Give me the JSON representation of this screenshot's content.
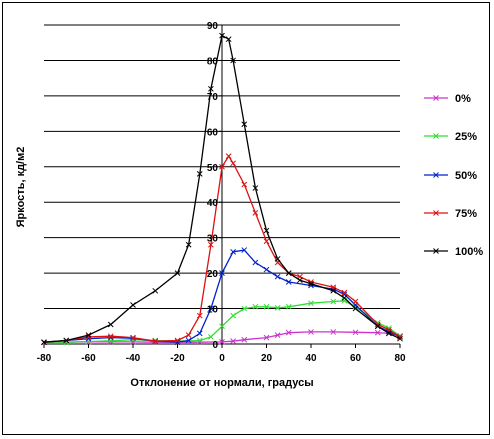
{
  "chart_data": {
    "type": "line",
    "xlabel": "Отклонение от нормали, градусы",
    "ylabel": "Яркость, кд/м2",
    "xlim": [
      -80,
      80
    ],
    "ylim": [
      0,
      90
    ],
    "x_ticks": [
      -80,
      -60,
      -40,
      -20,
      0,
      20,
      40,
      60,
      80
    ],
    "y_ticks": [
      10,
      20,
      30,
      40,
      50,
      60,
      70,
      80,
      90
    ],
    "y_ticks_on_axis": [
      0
    ],
    "grid": "horizontal",
    "legend_position": "right",
    "series": [
      {
        "name": "0%",
        "color": "#cc33cc",
        "points": [
          [
            -80,
            0.5
          ],
          [
            -70,
            0.5
          ],
          [
            -60,
            0.6
          ],
          [
            -50,
            0.6
          ],
          [
            -40,
            0.6
          ],
          [
            -30,
            0.5
          ],
          [
            -20,
            0.5
          ],
          [
            -10,
            0.5
          ],
          [
            0,
            0.6
          ],
          [
            5,
            0.8
          ],
          [
            10,
            1.2
          ],
          [
            20,
            1.8
          ],
          [
            25,
            2.5
          ],
          [
            30,
            3.2
          ],
          [
            40,
            3.4
          ],
          [
            50,
            3.4
          ],
          [
            60,
            3.3
          ],
          [
            70,
            3.2
          ],
          [
            75,
            3
          ],
          [
            80,
            2.3
          ]
        ]
      },
      {
        "name": "25%",
        "color": "#33dd33",
        "points": [
          [
            -80,
            0.5
          ],
          [
            -70,
            0.5
          ],
          [
            -60,
            0.7
          ],
          [
            -50,
            0.9
          ],
          [
            -40,
            1.2
          ],
          [
            -30,
            1.0
          ],
          [
            -20,
            0.8
          ],
          [
            -10,
            1.0
          ],
          [
            -5,
            2
          ],
          [
            0,
            5
          ],
          [
            5,
            8
          ],
          [
            10,
            10
          ],
          [
            15,
            10.5
          ],
          [
            20,
            10.5
          ],
          [
            25,
            10.2
          ],
          [
            30,
            10.5
          ],
          [
            40,
            11.5
          ],
          [
            50,
            12.0
          ],
          [
            55,
            12.2
          ],
          [
            60,
            10.5
          ],
          [
            70,
            6
          ],
          [
            75,
            4.5
          ],
          [
            80,
            2.3
          ]
        ]
      },
      {
        "name": "50%",
        "color": "#0022cc",
        "points": [
          [
            -80,
            0.5
          ],
          [
            -70,
            1.0
          ],
          [
            -60,
            1.5
          ],
          [
            -50,
            1.8
          ],
          [
            -40,
            1.6
          ],
          [
            -30,
            0.8
          ],
          [
            -20,
            0.5
          ],
          [
            -15,
            1.0
          ],
          [
            -10,
            3
          ],
          [
            -5,
            10
          ],
          [
            0,
            20
          ],
          [
            5,
            26
          ],
          [
            10,
            26.5
          ],
          [
            15,
            23
          ],
          [
            20,
            21
          ],
          [
            25,
            19
          ],
          [
            30,
            17.5
          ],
          [
            40,
            16.5
          ],
          [
            50,
            15.5
          ],
          [
            55,
            14
          ],
          [
            60,
            11
          ],
          [
            70,
            5
          ],
          [
            75,
            3.5
          ],
          [
            80,
            2
          ]
        ]
      },
      {
        "name": "75%",
        "color": "#dd1111",
        "points": [
          [
            -80,
            0.5
          ],
          [
            -70,
            1.0
          ],
          [
            -60,
            2.0
          ],
          [
            -50,
            2.2
          ],
          [
            -40,
            1.8
          ],
          [
            -30,
            0.8
          ],
          [
            -20,
            1.0
          ],
          [
            -15,
            2.5
          ],
          [
            -10,
            8
          ],
          [
            -5,
            28
          ],
          [
            0,
            50
          ],
          [
            3,
            53
          ],
          [
            5,
            51
          ],
          [
            10,
            45
          ],
          [
            15,
            37
          ],
          [
            20,
            29
          ],
          [
            25,
            23
          ],
          [
            30,
            20
          ],
          [
            35,
            19
          ],
          [
            40,
            17.5
          ],
          [
            50,
            16
          ],
          [
            55,
            14.5
          ],
          [
            60,
            12
          ],
          [
            70,
            5.5
          ],
          [
            75,
            4
          ],
          [
            80,
            2
          ]
        ]
      },
      {
        "name": "100%",
        "color": "#000000",
        "points": [
          [
            -80,
            0.5
          ],
          [
            -70,
            1.0
          ],
          [
            -60,
            2.5
          ],
          [
            -50,
            5.5
          ],
          [
            -40,
            11
          ],
          [
            -30,
            15
          ],
          [
            -20,
            20
          ],
          [
            -15,
            28
          ],
          [
            -10,
            48
          ],
          [
            -5,
            72
          ],
          [
            0,
            87
          ],
          [
            3,
            86
          ],
          [
            5,
            80
          ],
          [
            10,
            62
          ],
          [
            15,
            44
          ],
          [
            20,
            32
          ],
          [
            25,
            24
          ],
          [
            30,
            20
          ],
          [
            35,
            18
          ],
          [
            40,
            17
          ],
          [
            50,
            15
          ],
          [
            55,
            13
          ],
          [
            60,
            10
          ],
          [
            70,
            5
          ],
          [
            75,
            3
          ],
          [
            80,
            1.5
          ]
        ]
      }
    ]
  }
}
